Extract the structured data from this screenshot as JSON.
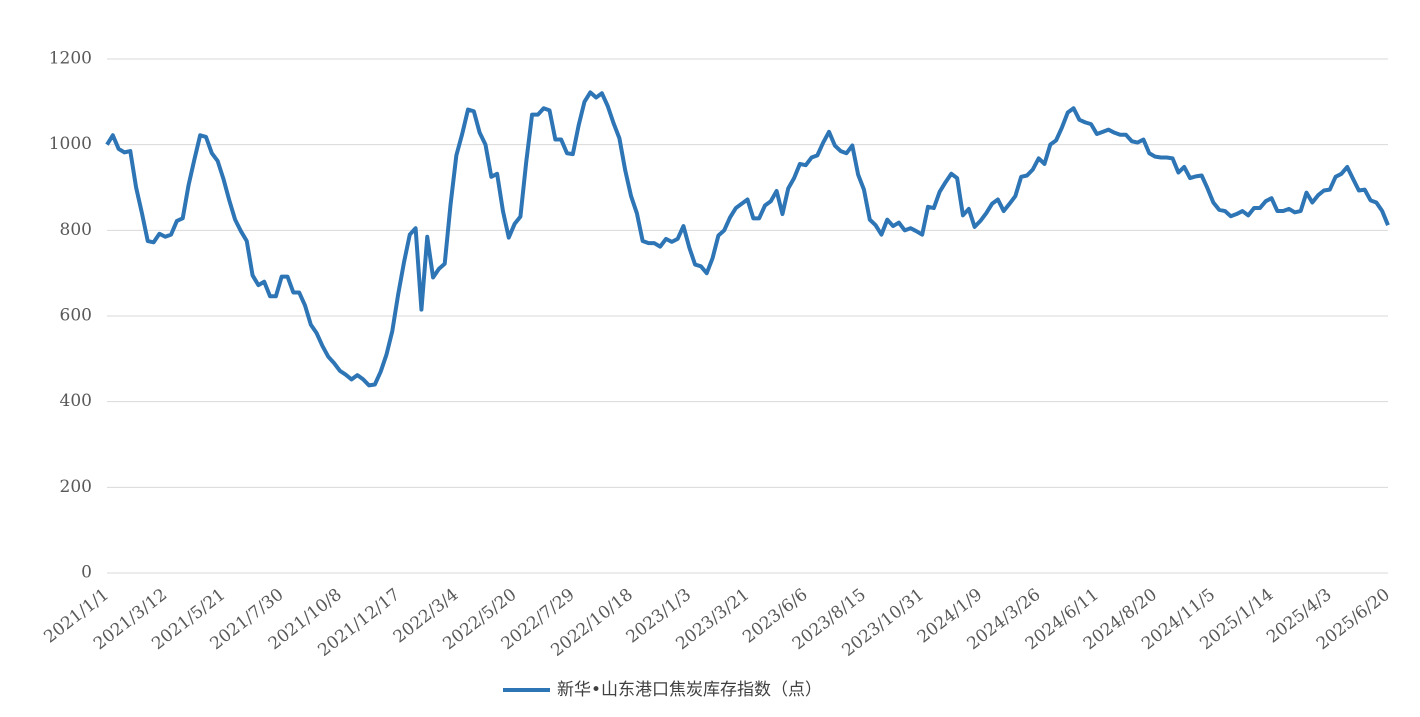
{
  "chart_data": {
    "type": "line",
    "categories": [
      "2021/1/1",
      null,
      null,
      null,
      null,
      null,
      null,
      null,
      null,
      null,
      "2021/3/12",
      null,
      null,
      null,
      null,
      null,
      null,
      null,
      null,
      null,
      "2021/5/21",
      null,
      null,
      null,
      null,
      null,
      null,
      null,
      null,
      null,
      "2021/7/30",
      null,
      null,
      null,
      null,
      null,
      null,
      null,
      null,
      null,
      "2021/10/8",
      null,
      null,
      null,
      null,
      null,
      null,
      null,
      null,
      null,
      "2021/12/17",
      null,
      null,
      null,
      null,
      null,
      null,
      null,
      null,
      null,
      "2022/3/4",
      null,
      null,
      null,
      null,
      null,
      null,
      null,
      null,
      null,
      "2022/5/20",
      null,
      null,
      null,
      null,
      null,
      null,
      null,
      null,
      null,
      "2022/7/29",
      null,
      null,
      null,
      null,
      null,
      null,
      null,
      null,
      null,
      "2022/10/18",
      null,
      null,
      null,
      null,
      null,
      null,
      null,
      null,
      null,
      "2023/1/3",
      null,
      null,
      null,
      null,
      null,
      null,
      null,
      null,
      null,
      "2023/3/21",
      null,
      null,
      null,
      null,
      null,
      null,
      null,
      null,
      null,
      "2023/6/6",
      null,
      null,
      null,
      null,
      null,
      null,
      null,
      null,
      null,
      "2023/8/15",
      null,
      null,
      null,
      null,
      null,
      null,
      null,
      null,
      null,
      "2023/10/31",
      null,
      null,
      null,
      null,
      null,
      null,
      null,
      null,
      null,
      "2024/1/9",
      null,
      null,
      null,
      null,
      null,
      null,
      null,
      null,
      null,
      "2024/3/26",
      null,
      null,
      null,
      null,
      null,
      null,
      null,
      null,
      null,
      "2024/6/11",
      null,
      null,
      null,
      null,
      null,
      null,
      null,
      null,
      null,
      "2024/8/20",
      null,
      null,
      null,
      null,
      null,
      null,
      null,
      null,
      null,
      "2024/11/5",
      null,
      null,
      null,
      null,
      null,
      null,
      null,
      null,
      null,
      "2025/1/14",
      null,
      null,
      null,
      null,
      null,
      null,
      null,
      null,
      null,
      "2025/4/3",
      null,
      null,
      null,
      null,
      null,
      null,
      null,
      null,
      null,
      "2025/6/20"
    ],
    "series": [
      {
        "name": "新华•山东港口焦炭库存指数（点）",
        "color": "#2e75b6",
        "values": [
          1000,
          1022,
          990,
          982,
          985,
          900,
          840,
          775,
          772,
          792,
          785,
          790,
          822,
          828,
          905,
          965,
          1022,
          1018,
          980,
          962,
          920,
          870,
          825,
          798,
          775,
          695,
          672,
          680,
          646,
          646,
          692,
          692,
          655,
          655,
          625,
          580,
          560,
          530,
          505,
          490,
          472,
          463,
          452,
          462,
          452,
          438,
          440,
          470,
          510,
          565,
          650,
          725,
          790,
          805,
          615,
          785,
          690,
          710,
          722,
          860,
          975,
          1025,
          1082,
          1078,
          1028,
          1000,
          925,
          932,
          845,
          783,
          815,
          832,
          960,
          1070,
          1070,
          1085,
          1080,
          1012,
          1012,
          980,
          978,
          1045,
          1100,
          1122,
          1110,
          1120,
          1090,
          1050,
          1015,
          940,
          880,
          840,
          775,
          770,
          770,
          762,
          780,
          773,
          780,
          810,
          760,
          720,
          716,
          700,
          735,
          788,
          800,
          830,
          852,
          862,
          872,
          828,
          828,
          858,
          868,
          892,
          838,
          898,
          922,
          955,
          952,
          970,
          975,
          1005,
          1030,
          998,
          985,
          980,
          998,
          930,
          895,
          825,
          812,
          790,
          825,
          810,
          818,
          800,
          805,
          798,
          790,
          855,
          852,
          890,
          912,
          932,
          922,
          835,
          850,
          808,
          822,
          840,
          862,
          872,
          845,
          862,
          880,
          925,
          928,
          942,
          968,
          955,
          1000,
          1010,
          1040,
          1075,
          1085,
          1058,
          1052,
          1048,
          1025,
          1030,
          1035,
          1028,
          1023,
          1023,
          1008,
          1005,
          1012,
          980,
          972,
          970,
          970,
          968,
          935,
          948,
          922,
          926,
          928,
          898,
          865,
          848,
          845,
          833,
          838,
          845,
          835,
          852,
          852,
          868,
          875,
          845,
          845,
          850,
          842,
          845,
          888,
          865,
          882,
          893,
          895,
          925,
          932,
          948,
          920,
          893,
          895,
          870,
          865,
          845,
          812
        ]
      }
    ],
    "ylim": [
      0,
      1200
    ],
    "yticks": [
      0,
      200,
      400,
      600,
      800,
      1000,
      1200
    ],
    "grid": true,
    "legend": "bottom"
  }
}
